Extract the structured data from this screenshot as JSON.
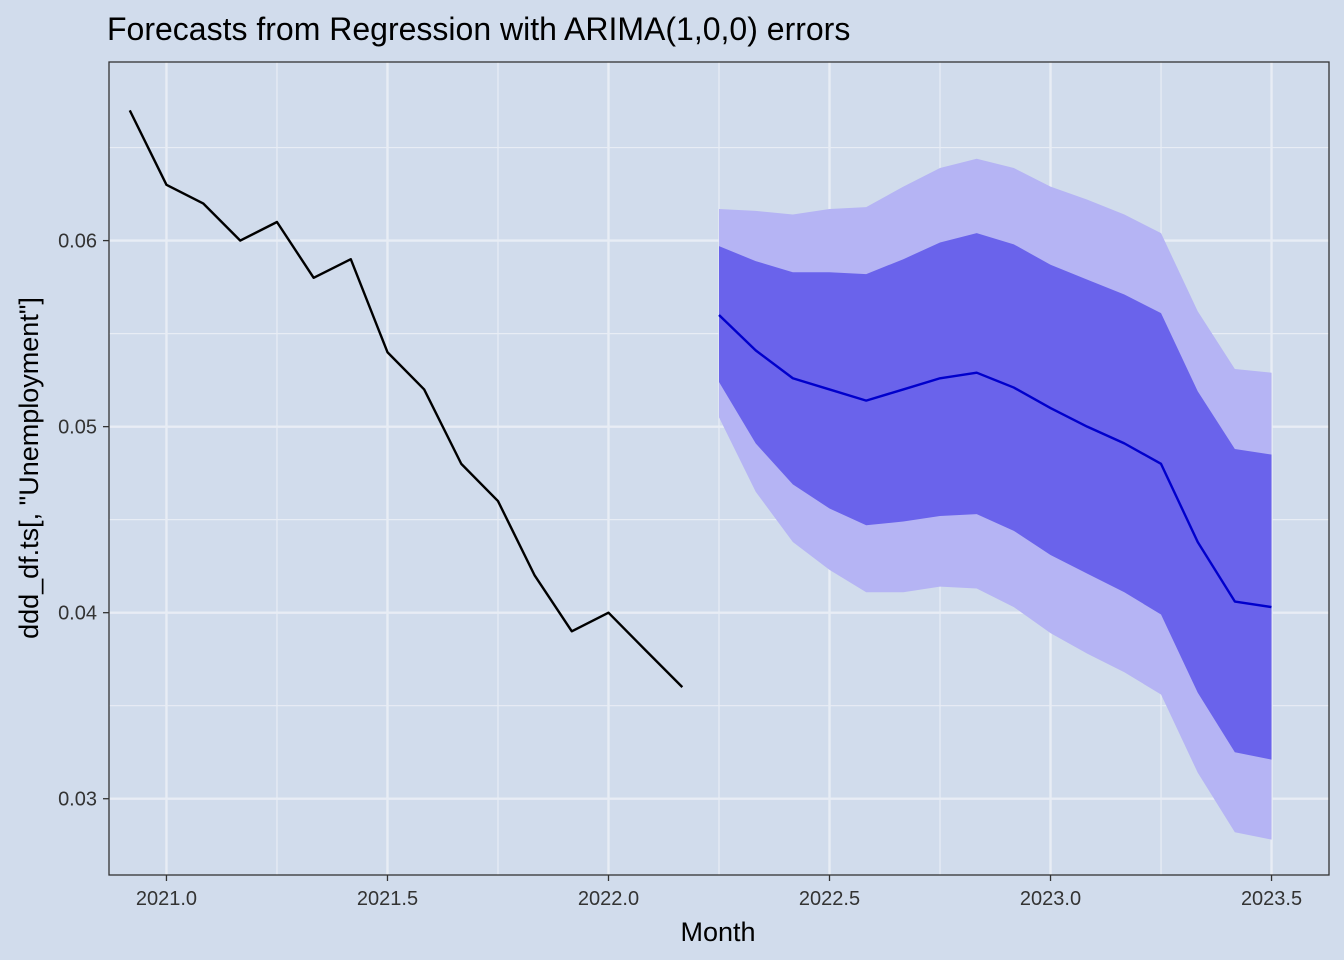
{
  "chart_data": {
    "type": "line",
    "title": "Forecasts from Regression with ARIMA(1,0,0) errors",
    "xlabel": "Month",
    "ylabel": "ddd_df.ts[, \"Unemployment\"]",
    "xlim": [
      2020.87,
      2023.63
    ],
    "ylim": [
      0.0259,
      0.0696
    ],
    "x_ticks": [
      2021.0,
      2021.5,
      2022.0,
      2022.5,
      2023.0,
      2023.5
    ],
    "x_tick_labels": [
      "2021.0",
      "2021.5",
      "2022.0",
      "2022.5",
      "2023.0",
      "2023.5"
    ],
    "y_ticks": [
      0.03,
      0.04,
      0.05,
      0.06
    ],
    "y_tick_labels": [
      "0.03",
      "0.04",
      "0.05",
      "0.06"
    ],
    "grid": true,
    "colors": {
      "background": "#d1dcec",
      "panel": "#d1dcec",
      "grid": "#e8edf5",
      "actual_line": "#000000",
      "forecast_line": "#0000cc",
      "band_80": "#6a63eb",
      "band_95": "#b5b4f4"
    },
    "series": [
      {
        "role": "actual",
        "x": [
          2020.917,
          2021.0,
          2021.083,
          2021.167,
          2021.25,
          2021.333,
          2021.417,
          2021.5,
          2021.583,
          2021.667,
          2021.75,
          2021.833,
          2021.917,
          2022.0,
          2022.083,
          2022.167
        ],
        "values": [
          0.067,
          0.063,
          0.062,
          0.06,
          0.061,
          0.058,
          0.059,
          0.054,
          0.052,
          0.048,
          0.046,
          0.042,
          0.039,
          0.04,
          0.038,
          0.036
        ]
      },
      {
        "role": "forecast",
        "x": [
          2022.25,
          2022.333,
          2022.417,
          2022.5,
          2022.583,
          2022.667,
          2022.75,
          2022.833,
          2022.917,
          2023.0,
          2023.083,
          2023.167,
          2023.25,
          2023.333,
          2023.417,
          2023.5
        ],
        "values": [
          0.056,
          0.0541,
          0.0526,
          0.052,
          0.0514,
          0.052,
          0.0526,
          0.0529,
          0.0521,
          0.051,
          0.05,
          0.0491,
          0.048,
          0.0438,
          0.0406,
          0.0403
        ],
        "lo80": [
          0.0524,
          0.0491,
          0.0469,
          0.0456,
          0.0447,
          0.0449,
          0.0452,
          0.0453,
          0.0444,
          0.0431,
          0.0421,
          0.0411,
          0.0399,
          0.0357,
          0.0325,
          0.0321
        ],
        "hi80": [
          0.0597,
          0.0589,
          0.0583,
          0.0583,
          0.0582,
          0.059,
          0.0599,
          0.0604,
          0.0598,
          0.0587,
          0.0579,
          0.0571,
          0.0561,
          0.0519,
          0.0488,
          0.0485
        ],
        "lo95": [
          0.0505,
          0.0465,
          0.0438,
          0.0423,
          0.0411,
          0.0411,
          0.0414,
          0.0413,
          0.0403,
          0.0389,
          0.0378,
          0.0368,
          0.0356,
          0.0314,
          0.0282,
          0.0278
        ],
        "hi95": [
          0.0617,
          0.0616,
          0.0614,
          0.0617,
          0.0618,
          0.0629,
          0.0639,
          0.0644,
          0.0639,
          0.0629,
          0.0622,
          0.0614,
          0.0604,
          0.0562,
          0.0531,
          0.0529
        ]
      }
    ]
  }
}
